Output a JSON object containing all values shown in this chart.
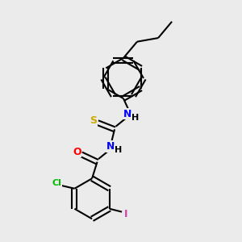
{
  "background_color": "#ebebeb",
  "bond_color": "#000000",
  "atom_colors": {
    "S": "#ccaa00",
    "N": "#0000ff",
    "O": "#ff0000",
    "Cl": "#00bb00",
    "I": "#cc44aa",
    "C": "#000000",
    "H": "#000000"
  },
  "figsize": [
    3.0,
    3.0
  ],
  "dpi": 100
}
